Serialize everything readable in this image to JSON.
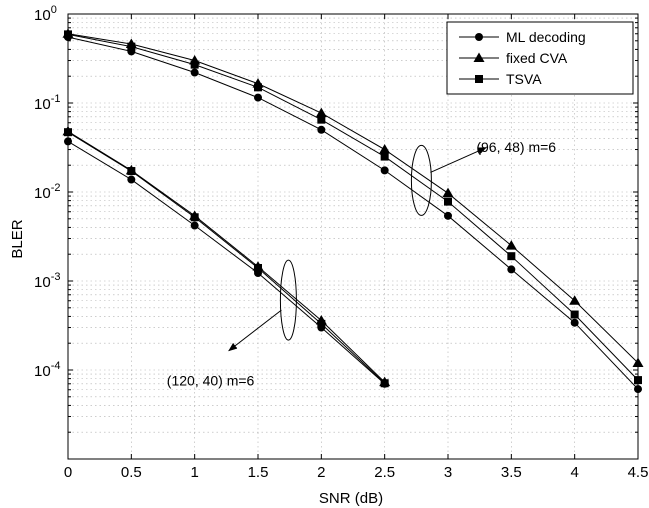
{
  "chart_data": {
    "type": "line",
    "xlabel": "SNR (dB)",
    "ylabel": "BLER",
    "xlim": [
      0,
      4.5
    ],
    "ylim": [
      1e-05,
      1
    ],
    "y_scale": "log",
    "x_ticks": [
      "0",
      "0.5",
      "1",
      "1.5",
      "2",
      "2.5",
      "3",
      "3.5",
      "4",
      "4.5"
    ],
    "y_ticks": [
      {
        "value": 1,
        "base": "10",
        "exp": "0"
      },
      {
        "value": 0.1,
        "base": "10",
        "exp": "-1"
      },
      {
        "value": 0.01,
        "base": "10",
        "exp": "-2"
      },
      {
        "value": 0.001,
        "base": "10",
        "exp": "-3"
      },
      {
        "value": 0.0001,
        "base": "10",
        "exp": "-4"
      }
    ],
    "grid": true,
    "legend_position": "top-right",
    "legend": [
      {
        "label": "ML decoding",
        "marker": "circle"
      },
      {
        "label": "fixed CVA",
        "marker": "triangle"
      },
      {
        "label": "TSVA",
        "marker": "square"
      }
    ],
    "series": [
      {
        "name": "ML decoding",
        "code": "(96, 48) m=6",
        "marker": "circle",
        "x": [
          0,
          0.5,
          1,
          1.5,
          2,
          2.5,
          3,
          3.5,
          4,
          4.5
        ],
        "y": [
          0.55,
          0.38,
          0.22,
          0.115,
          0.05,
          0.0175,
          0.0054,
          0.00135,
          0.00034,
          6.1e-05
        ]
      },
      {
        "name": "fixed CVA",
        "code": "(96, 48) m=6",
        "marker": "triangle",
        "x": [
          0,
          0.5,
          1,
          1.5,
          2,
          2.5,
          3,
          3.5,
          4,
          4.5
        ],
        "y": [
          0.6,
          0.46,
          0.3,
          0.165,
          0.077,
          0.03,
          0.0097,
          0.0025,
          0.0006,
          0.00012
        ]
      },
      {
        "name": "TSVA",
        "code": "(96, 48) m=6",
        "marker": "square",
        "x": [
          0,
          0.5,
          1,
          1.5,
          2,
          2.5,
          3,
          3.5,
          4,
          4.5
        ],
        "y": [
          0.59,
          0.43,
          0.27,
          0.15,
          0.065,
          0.025,
          0.0078,
          0.0019,
          0.00042,
          7.7e-05
        ]
      },
      {
        "name": "ML decoding",
        "code": "(120, 40) m=6",
        "marker": "circle",
        "x": [
          0,
          0.5,
          1,
          1.5,
          2,
          2.5
        ],
        "y": [
          0.037,
          0.0138,
          0.0042,
          0.00123,
          0.0003,
          7e-05
        ]
      },
      {
        "name": "fixed CVA",
        "code": "(120, 40) m=6",
        "marker": "triangle",
        "x": [
          0,
          0.5,
          1,
          1.5,
          2,
          2.5
        ],
        "y": [
          0.048,
          0.0175,
          0.0054,
          0.00145,
          0.00036,
          7.3e-05
        ]
      },
      {
        "name": "TSVA",
        "code": "(120, 40) m=6",
        "marker": "square",
        "x": [
          0,
          0.5,
          1,
          1.5,
          2,
          2.5
        ],
        "y": [
          0.047,
          0.0172,
          0.0052,
          0.0014,
          0.00033,
          7.1e-05
        ]
      }
    ],
    "annotations": [
      {
        "text": "(96, 48) m=6",
        "x": 3.05,
        "y": 0.032
      },
      {
        "text": "(120, 40) m=6",
        "x": 0.78,
        "y": 7.6e-05
      }
    ],
    "colors": {
      "line": "#000000",
      "grid": "#b0b0b0",
      "background": "#ffffff"
    }
  }
}
